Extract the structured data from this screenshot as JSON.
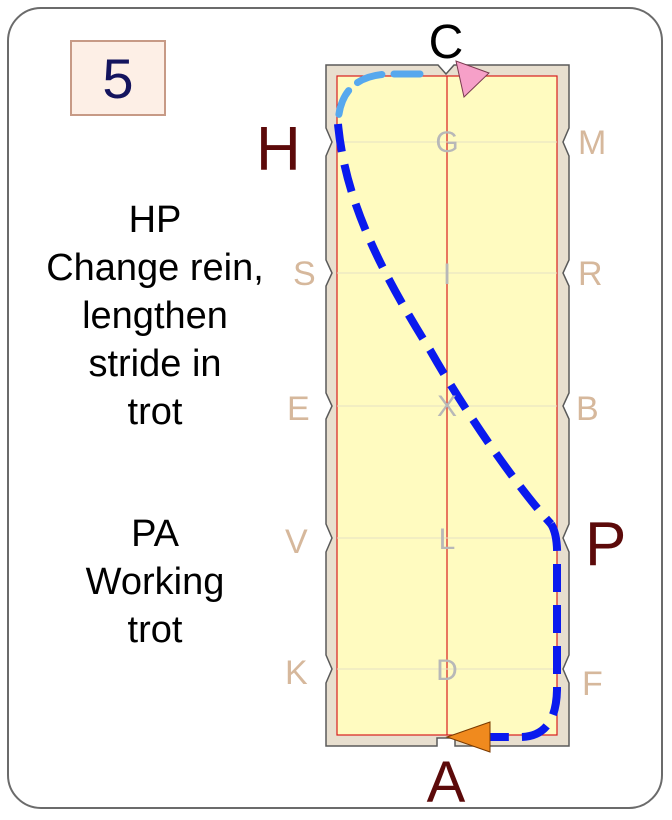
{
  "movement_number": "5",
  "instructions": [
    {
      "lines": [
        "HP",
        "Change rein,",
        "lengthen",
        "stride in",
        "trot"
      ]
    },
    {
      "lines": [
        "PA",
        "Working",
        "trot"
      ]
    }
  ],
  "letters": {
    "C": "C",
    "A": "A",
    "H": "H",
    "P": "P",
    "G": "G",
    "I": "I",
    "X": "X",
    "L": "L",
    "D": "D",
    "M": "M",
    "R": "R",
    "B": "B",
    "F": "F",
    "S": "S",
    "E": "E",
    "V": "V",
    "K": "K"
  },
  "colors": {
    "arena_fill": "#fffbc0",
    "arena_border": "#e8dfcf",
    "rail": "#d81e1e",
    "path_blue": "#0a1aee",
    "path_light_blue": "#56a8ee",
    "start_arrow": "#f08a1e",
    "end_arrow": "#f6a0c8",
    "letter_faint": "#d6b89c",
    "letter_center": "#b8b8b8",
    "letter_key": "#5c0a0a"
  }
}
